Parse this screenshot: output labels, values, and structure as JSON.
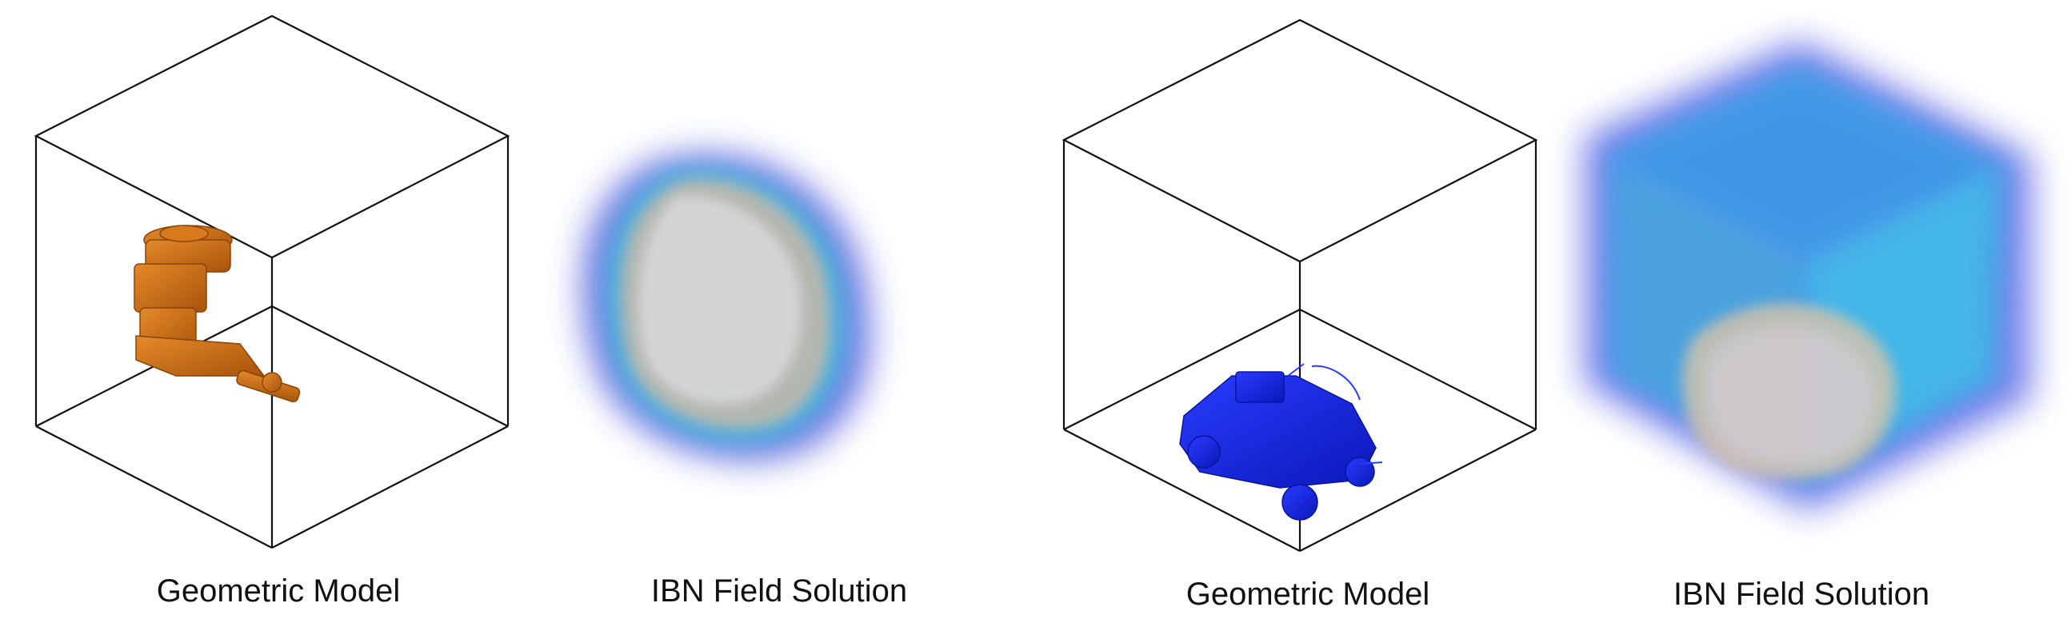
{
  "figure": {
    "panels": [
      {
        "caption": "Geometric Model",
        "object": "engine-model",
        "color": "#C8690F"
      },
      {
        "caption": "IBN Field Solution",
        "object": "field-blob"
      },
      {
        "caption": "Geometric Model",
        "object": "humvee-model",
        "color": "#1A2AE0"
      },
      {
        "caption": "IBN Field Solution",
        "object": "field-cube"
      }
    ]
  }
}
